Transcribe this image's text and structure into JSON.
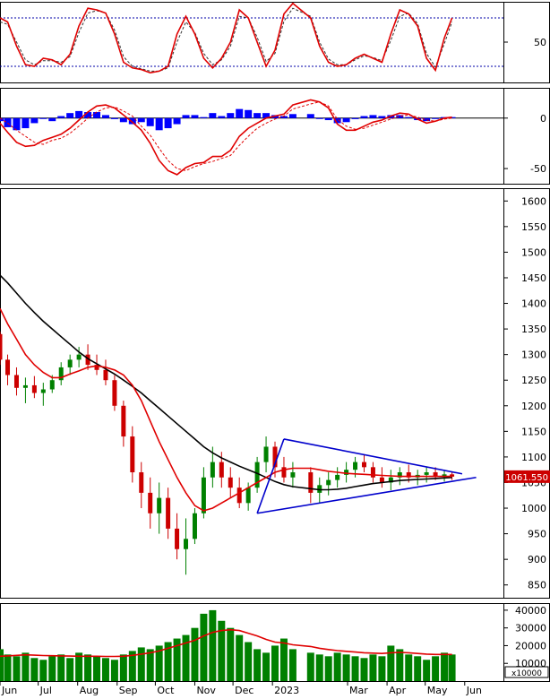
{
  "colors": {
    "candle_up": "#008000",
    "candle_down": "#cc0000",
    "ma_short": "#e00000",
    "ma_long": "#000000",
    "triangle": "#0000cc",
    "volume": "#008000",
    "volume_ma": "#e00000",
    "histogram": "#0000ff",
    "stoch_k": "#e00000",
    "stoch_d": "#333333",
    "dotted_level": "#0000aa",
    "last_label_bg": "#cc0000"
  },
  "chart_data": [
    {
      "type": "line",
      "panel": "stochastic",
      "yticks": [
        "50"
      ],
      "ylim": [
        0,
        100
      ],
      "levels": [
        20,
        80
      ],
      "x": [
        "2022-06-01",
        "2022-06-07",
        "2022-06-14",
        "2022-06-21",
        "2022-06-28",
        "2022-07-05",
        "2022-07-12",
        "2022-07-19",
        "2022-07-26",
        "2022-08-02",
        "2022-08-09",
        "2022-08-16",
        "2022-08-23",
        "2022-08-30",
        "2022-09-06",
        "2022-09-13",
        "2022-09-20",
        "2022-09-27",
        "2022-10-04",
        "2022-10-11",
        "2022-10-18",
        "2022-10-25",
        "2022-11-01",
        "2022-11-08",
        "2022-11-15",
        "2022-11-22",
        "2022-11-29",
        "2022-12-06",
        "2022-12-13",
        "2022-12-20",
        "2022-12-27",
        "2023-01-03",
        "2023-01-10",
        "2023-01-17",
        "2023-01-31",
        "2023-02-07",
        "2023-02-14",
        "2023-02-21",
        "2023-02-28",
        "2023-03-07",
        "2023-03-14",
        "2023-03-21",
        "2023-03-28",
        "2023-04-04",
        "2023-04-11",
        "2023-04-18",
        "2023-04-25",
        "2023-05-02",
        "2023-05-09",
        "2023-05-16",
        "2023-05-22"
      ],
      "series": [
        {
          "values": [
            80,
            75,
            45,
            22,
            20,
            30,
            28,
            22,
            35,
            70,
            92,
            90,
            86,
            60,
            25,
            18,
            16,
            12,
            14,
            20,
            60,
            82,
            60,
            30,
            18,
            30,
            50,
            90,
            80,
            50,
            20,
            40,
            85,
            98,
            80,
            45,
            25,
            20,
            22,
            30,
            35,
            30,
            25,
            60,
            90,
            85,
            70,
            30,
            15,
            55,
            80
          ]
        },
        {
          "values": [
            75,
            72,
            50,
            28,
            22,
            27,
            27,
            25,
            32,
            62,
            86,
            89,
            86,
            65,
            32,
            20,
            17,
            14,
            14,
            18,
            50,
            75,
            62,
            36,
            22,
            28,
            45,
            82,
            80,
            56,
            26,
            36,
            76,
            92,
            82,
            50,
            29,
            22,
            22,
            28,
            33,
            31,
            27,
            52,
            82,
            86,
            73,
            36,
            19,
            48,
            75
          ]
        }
      ]
    },
    {
      "type": "line",
      "panel": "macd",
      "yticks": [
        "0",
        "-50"
      ],
      "ylim": [
        -65,
        30
      ],
      "x": [
        "2022-06-01",
        "2022-06-07",
        "2022-06-14",
        "2022-06-21",
        "2022-06-28",
        "2022-07-05",
        "2022-07-12",
        "2022-07-19",
        "2022-07-26",
        "2022-08-02",
        "2022-08-09",
        "2022-08-16",
        "2022-08-23",
        "2022-08-30",
        "2022-09-06",
        "2022-09-13",
        "2022-09-20",
        "2022-09-27",
        "2022-10-04",
        "2022-10-11",
        "2022-10-18",
        "2022-10-25",
        "2022-11-01",
        "2022-11-08",
        "2022-11-15",
        "2022-11-22",
        "2022-11-29",
        "2022-12-06",
        "2022-12-13",
        "2022-12-20",
        "2022-12-27",
        "2023-01-03",
        "2023-01-10",
        "2023-01-17",
        "2023-01-31",
        "2023-02-07",
        "2023-02-14",
        "2023-02-21",
        "2023-02-28",
        "2023-03-07",
        "2023-03-14",
        "2023-03-21",
        "2023-03-28",
        "2023-04-04",
        "2023-04-11",
        "2023-04-18",
        "2023-04-25",
        "2023-05-02",
        "2023-05-09",
        "2023-05-16",
        "2023-05-22"
      ],
      "series": [
        {
          "values": [
            -5,
            -14,
            -24,
            -28,
            -27,
            -22,
            -19,
            -16,
            -10,
            -2,
            6,
            12,
            13,
            10,
            3,
            -4,
            -12,
            -25,
            -42,
            -52,
            -56,
            -49,
            -45,
            -44,
            -38,
            -38,
            -32,
            -18,
            -10,
            -5,
            0,
            2,
            4,
            13,
            18,
            16,
            10,
            -6,
            -12,
            -12,
            -8,
            -4,
            -2,
            2,
            5,
            4,
            -1,
            -5,
            -3,
            0,
            1
          ]
        },
        {
          "values": [
            0,
            -5,
            -12,
            -18,
            -24,
            -26,
            -22,
            -20,
            -15,
            -8,
            0,
            6,
            10,
            11,
            7,
            2,
            -8,
            -17,
            -30,
            -42,
            -50,
            -52,
            -48,
            -45,
            -43,
            -40,
            -37,
            -27,
            -18,
            -10,
            -5,
            -1,
            2,
            9,
            14,
            16,
            12,
            -1,
            -8,
            -11,
            -10,
            -7,
            -4,
            -1,
            2,
            3,
            1,
            -2,
            -3,
            -1,
            0
          ]
        },
        {
          "values": [
            -3,
            -9,
            -12,
            -10,
            -5,
            0,
            -3,
            2,
            5,
            7,
            6,
            6,
            3,
            -1,
            -4,
            -6,
            -4,
            -8,
            -12,
            -10,
            -6,
            3,
            3,
            1,
            5,
            2,
            5,
            9,
            8,
            5,
            5,
            3,
            2,
            4,
            4,
            0,
            -2,
            -5,
            -4,
            -1,
            2,
            3,
            2,
            3,
            3,
            1,
            -2,
            -3,
            0,
            1,
            1
          ]
        }
      ]
    },
    {
      "type": "candlestick",
      "panel": "price",
      "yticks": [
        "1600",
        "1550",
        "1500",
        "1450",
        "1400",
        "1350",
        "1300",
        "1250",
        "1200",
        "1150",
        "1100",
        "1050",
        "1000",
        "950",
        "900",
        "850"
      ],
      "ylim": [
        825,
        1625
      ],
      "last_value_label": "1061.550",
      "x": [
        "2022-06-01",
        "2022-06-07",
        "2022-06-14",
        "2022-06-21",
        "2022-06-28",
        "2022-07-05",
        "2022-07-12",
        "2022-07-19",
        "2022-07-26",
        "2022-08-02",
        "2022-08-09",
        "2022-08-16",
        "2022-08-23",
        "2022-08-30",
        "2022-09-06",
        "2022-09-13",
        "2022-09-20",
        "2022-09-27",
        "2022-10-04",
        "2022-10-11",
        "2022-10-18",
        "2022-10-25",
        "2022-11-01",
        "2022-11-08",
        "2022-11-15",
        "2022-11-22",
        "2022-11-29",
        "2022-12-06",
        "2022-12-13",
        "2022-12-20",
        "2022-12-27",
        "2023-01-03",
        "2023-01-10",
        "2023-01-17",
        "2023-01-31",
        "2023-02-07",
        "2023-02-14",
        "2023-02-21",
        "2023-02-28",
        "2023-03-07",
        "2023-03-14",
        "2023-03-21",
        "2023-03-28",
        "2023-04-04",
        "2023-04-11",
        "2023-04-18",
        "2023-04-25",
        "2023-05-02",
        "2023-05-09",
        "2023-05-16",
        "2023-05-22"
      ],
      "ohlc": [
        [
          1340,
          1345,
          1280,
          1290
        ],
        [
          1290,
          1300,
          1240,
          1260
        ],
        [
          1260,
          1275,
          1220,
          1235
        ],
        [
          1235,
          1255,
          1205,
          1240
        ],
        [
          1240,
          1258,
          1215,
          1225
        ],
        [
          1225,
          1245,
          1200,
          1232
        ],
        [
          1232,
          1260,
          1225,
          1250
        ],
        [
          1250,
          1285,
          1240,
          1275
        ],
        [
          1275,
          1300,
          1260,
          1290
        ],
        [
          1290,
          1315,
          1275,
          1300
        ],
        [
          1300,
          1320,
          1270,
          1280
        ],
        [
          1280,
          1300,
          1260,
          1270
        ],
        [
          1270,
          1290,
          1240,
          1250
        ],
        [
          1250,
          1260,
          1190,
          1200
        ],
        [
          1200,
          1210,
          1120,
          1140
        ],
        [
          1140,
          1160,
          1050,
          1070
        ],
        [
          1070,
          1090,
          1000,
          1030
        ],
        [
          1030,
          1060,
          960,
          990
        ],
        [
          990,
          1050,
          950,
          1020
        ],
        [
          1020,
          1040,
          940,
          960
        ],
        [
          960,
          990,
          900,
          920
        ],
        [
          920,
          980,
          870,
          940
        ],
        [
          940,
          1000,
          930,
          990
        ],
        [
          990,
          1080,
          980,
          1060
        ],
        [
          1060,
          1120,
          1040,
          1090
        ],
        [
          1090,
          1110,
          1040,
          1060
        ],
        [
          1060,
          1080,
          1020,
          1040
        ],
        [
          1040,
          1060,
          1000,
          1010
        ],
        [
          1010,
          1050,
          995,
          1040
        ],
        [
          1040,
          1100,
          1030,
          1090
        ],
        [
          1090,
          1140,
          1070,
          1120
        ],
        [
          1120,
          1130,
          1060,
          1080
        ],
        [
          1080,
          1100,
          1050,
          1060
        ],
        [
          1060,
          1090,
          1040,
          1070
        ],
        [
          1070,
          1080,
          1010,
          1030
        ],
        [
          1030,
          1060,
          1010,
          1045
        ],
        [
          1045,
          1070,
          1025,
          1055
        ],
        [
          1055,
          1080,
          1040,
          1065
        ],
        [
          1065,
          1090,
          1050,
          1075
        ],
        [
          1075,
          1100,
          1060,
          1090
        ],
        [
          1090,
          1105,
          1070,
          1080
        ],
        [
          1080,
          1090,
          1050,
          1060
        ],
        [
          1060,
          1080,
          1040,
          1050
        ],
        [
          1050,
          1075,
          1035,
          1060
        ],
        [
          1060,
          1080,
          1045,
          1070
        ],
        [
          1070,
          1085,
          1050,
          1060
        ],
        [
          1060,
          1075,
          1045,
          1065
        ],
        [
          1065,
          1080,
          1050,
          1070
        ],
        [
          1070,
          1080,
          1055,
          1062
        ],
        [
          1062,
          1075,
          1052,
          1066
        ],
        [
          1066,
          1072,
          1055,
          1061.55
        ]
      ],
      "moving_averages": [
        {
          "values": [
            1390,
            1360,
            1330,
            1300,
            1280,
            1265,
            1255,
            1255,
            1262,
            1268,
            1275,
            1278,
            1275,
            1270,
            1260,
            1240,
            1210,
            1170,
            1130,
            1095,
            1060,
            1030,
            1005,
            995,
            1000,
            1010,
            1020,
            1030,
            1040,
            1050,
            1060,
            1070,
            1075,
            1078,
            1078,
            1075,
            1072,
            1070,
            1068,
            1067,
            1066,
            1065,
            1064,
            1063,
            1062,
            1062,
            1062,
            1062,
            1062,
            1062,
            1062
          ]
        },
        {
          "values": [
            1455,
            1440,
            1420,
            1400,
            1382,
            1365,
            1350,
            1335,
            1320,
            1305,
            1292,
            1282,
            1272,
            1262,
            1250,
            1238,
            1225,
            1210,
            1195,
            1180,
            1165,
            1150,
            1135,
            1120,
            1108,
            1098,
            1090,
            1082,
            1075,
            1068,
            1060,
            1052,
            1046,
            1042,
            1038,
            1036,
            1036,
            1037,
            1039,
            1042,
            1045,
            1048,
            1050,
            1052,
            1054,
            1055,
            1056,
            1057,
            1058,
            1059,
            1060
          ]
        }
      ],
      "triangle": {
        "upper": [
          [
            "2023-01-10",
            1135
          ],
          [
            "2023-05-30",
            1067
          ]
        ],
        "lower": [
          [
            "2022-12-20",
            990
          ],
          [
            "2023-06-10",
            1060
          ]
        ]
      }
    },
    {
      "type": "bar",
      "panel": "volume",
      "yticks": [
        "40000",
        "30000",
        "20000",
        "10000"
      ],
      "unit_label": "x10000",
      "ylim": [
        0,
        44000
      ],
      "x": [
        "2022-06-01",
        "2022-06-07",
        "2022-06-14",
        "2022-06-21",
        "2022-06-28",
        "2022-07-05",
        "2022-07-12",
        "2022-07-19",
        "2022-07-26",
        "2022-08-02",
        "2022-08-09",
        "2022-08-16",
        "2022-08-23",
        "2022-08-30",
        "2022-09-06",
        "2022-09-13",
        "2022-09-20",
        "2022-09-27",
        "2022-10-04",
        "2022-10-11",
        "2022-10-18",
        "2022-10-25",
        "2022-11-01",
        "2022-11-08",
        "2022-11-15",
        "2022-11-22",
        "2022-11-29",
        "2022-12-06",
        "2022-12-13",
        "2022-12-20",
        "2022-12-27",
        "2023-01-03",
        "2023-01-10",
        "2023-01-17",
        "2023-01-31",
        "2023-02-07",
        "2023-02-14",
        "2023-02-21",
        "2023-02-28",
        "2023-03-07",
        "2023-03-14",
        "2023-03-21",
        "2023-03-28",
        "2023-04-04",
        "2023-04-11",
        "2023-04-18",
        "2023-04-25",
        "2023-05-02",
        "2023-05-09",
        "2023-05-16",
        "2023-05-22"
      ],
      "values": [
        18000,
        15000,
        14000,
        16000,
        13000,
        12000,
        14000,
        15000,
        13000,
        16000,
        15000,
        14000,
        13000,
        12000,
        15000,
        17000,
        19000,
        18000,
        20000,
        22000,
        24000,
        26000,
        30000,
        38000,
        40000,
        34000,
        30000,
        26000,
        22000,
        18000,
        16000,
        20000,
        24000,
        18000,
        16000,
        15000,
        14000,
        16000,
        15000,
        14000,
        13000,
        15000,
        14000,
        20000,
        18000,
        15000,
        14000,
        12000,
        14000,
        16000,
        15000
      ],
      "moving_average": [
        14000,
        14200,
        14500,
        14800,
        14600,
        14400,
        14300,
        14200,
        14100,
        14000,
        14000,
        14000,
        13900,
        13900,
        14000,
        14500,
        15200,
        16000,
        17000,
        18500,
        20000,
        21500,
        23000,
        25500,
        27500,
        28500,
        29000,
        28500,
        27000,
        25500,
        23500,
        22000,
        21500,
        20500,
        19500,
        18500,
        17800,
        17200,
        16800,
        16400,
        16000,
        15800,
        15600,
        16000,
        16200,
        16000,
        15600,
        15200,
        15000,
        15000,
        15000
      ]
    }
  ],
  "x_axis": {
    "labels": [
      "Jun",
      "Jul",
      "Aug",
      "Sep",
      "Oct",
      "Nov",
      "Dec",
      "2023",
      "Mar",
      "Apr",
      "May",
      "Jun"
    ],
    "positions": [
      "2022-06-01",
      "2022-07-01",
      "2022-08-01",
      "2022-09-01",
      "2022-10-01",
      "2022-11-01",
      "2022-12-01",
      "2023-01-01",
      "2023-03-01",
      "2023-04-01",
      "2023-05-01",
      "2023-06-01"
    ]
  }
}
